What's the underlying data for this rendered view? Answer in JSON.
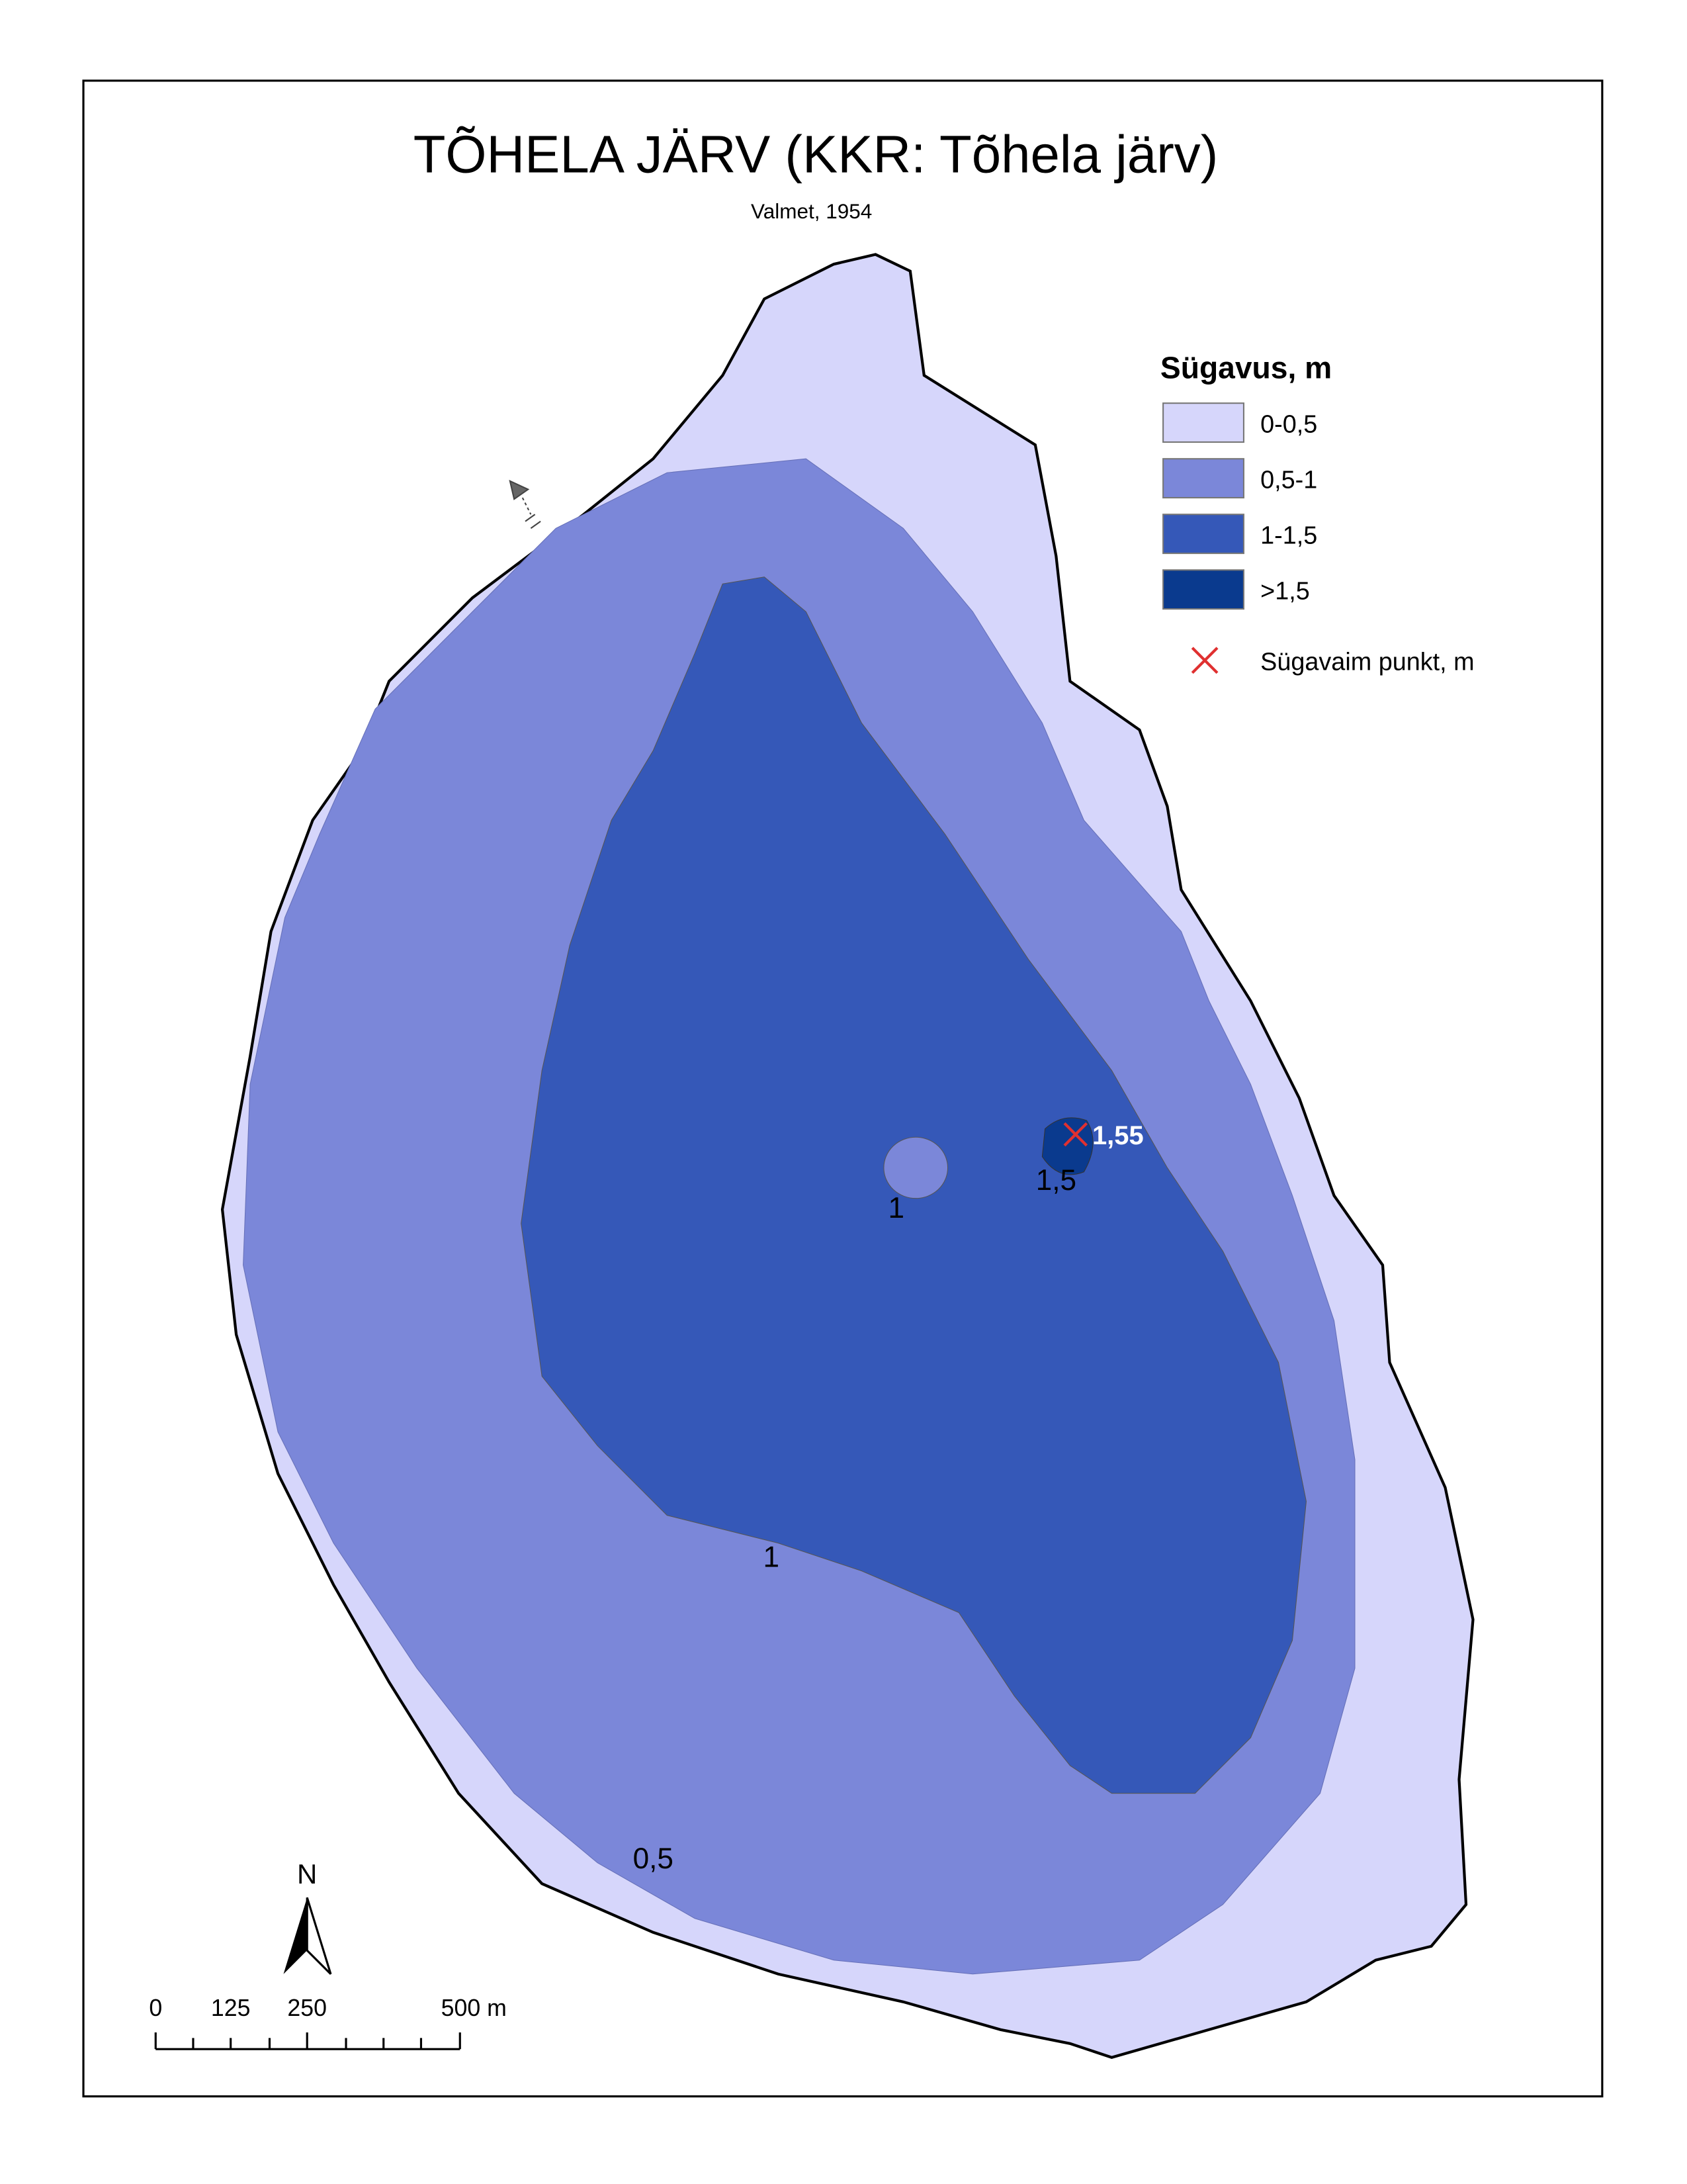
{
  "title": "TÕHELA JÄRV (KKR: Tõhela järv)",
  "subtitle": "Valmet, 1954",
  "legend": {
    "title": "Sügavus, m",
    "items": [
      {
        "label": "0-0,5",
        "color": "#d6d6fb"
      },
      {
        "label": "0,5-1",
        "color": "#7b87d9"
      },
      {
        "label": "1-1,5",
        "color": "#3558b8"
      },
      {
        "label": ">1,5",
        "color": "#0a3a8e"
      }
    ],
    "point": "Sügavaim punkt, m"
  },
  "deepest_point": "1,55",
  "contour_labels": [
    "1",
    "1,5",
    "1",
    "0,5"
  ],
  "north": "N",
  "scale_bar": [
    "0",
    "125",
    "250",
    "500 m"
  ]
}
